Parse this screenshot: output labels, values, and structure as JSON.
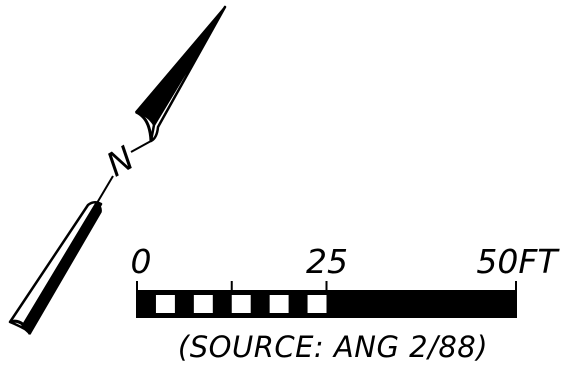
{
  "north_arrow": {
    "label": "N"
  },
  "scale_bar": {
    "ticks": [
      {
        "label": "0",
        "value": 0
      },
      {
        "label": "25",
        "value": 25
      },
      {
        "label": "50FT",
        "value": 50
      }
    ],
    "max_value": 50,
    "unit": "FT",
    "checker_from": 0,
    "checker_to": 25,
    "checker_segments": 10,
    "color": "#000000"
  },
  "source_note": "(SOURCE: ANG 2/88)"
}
